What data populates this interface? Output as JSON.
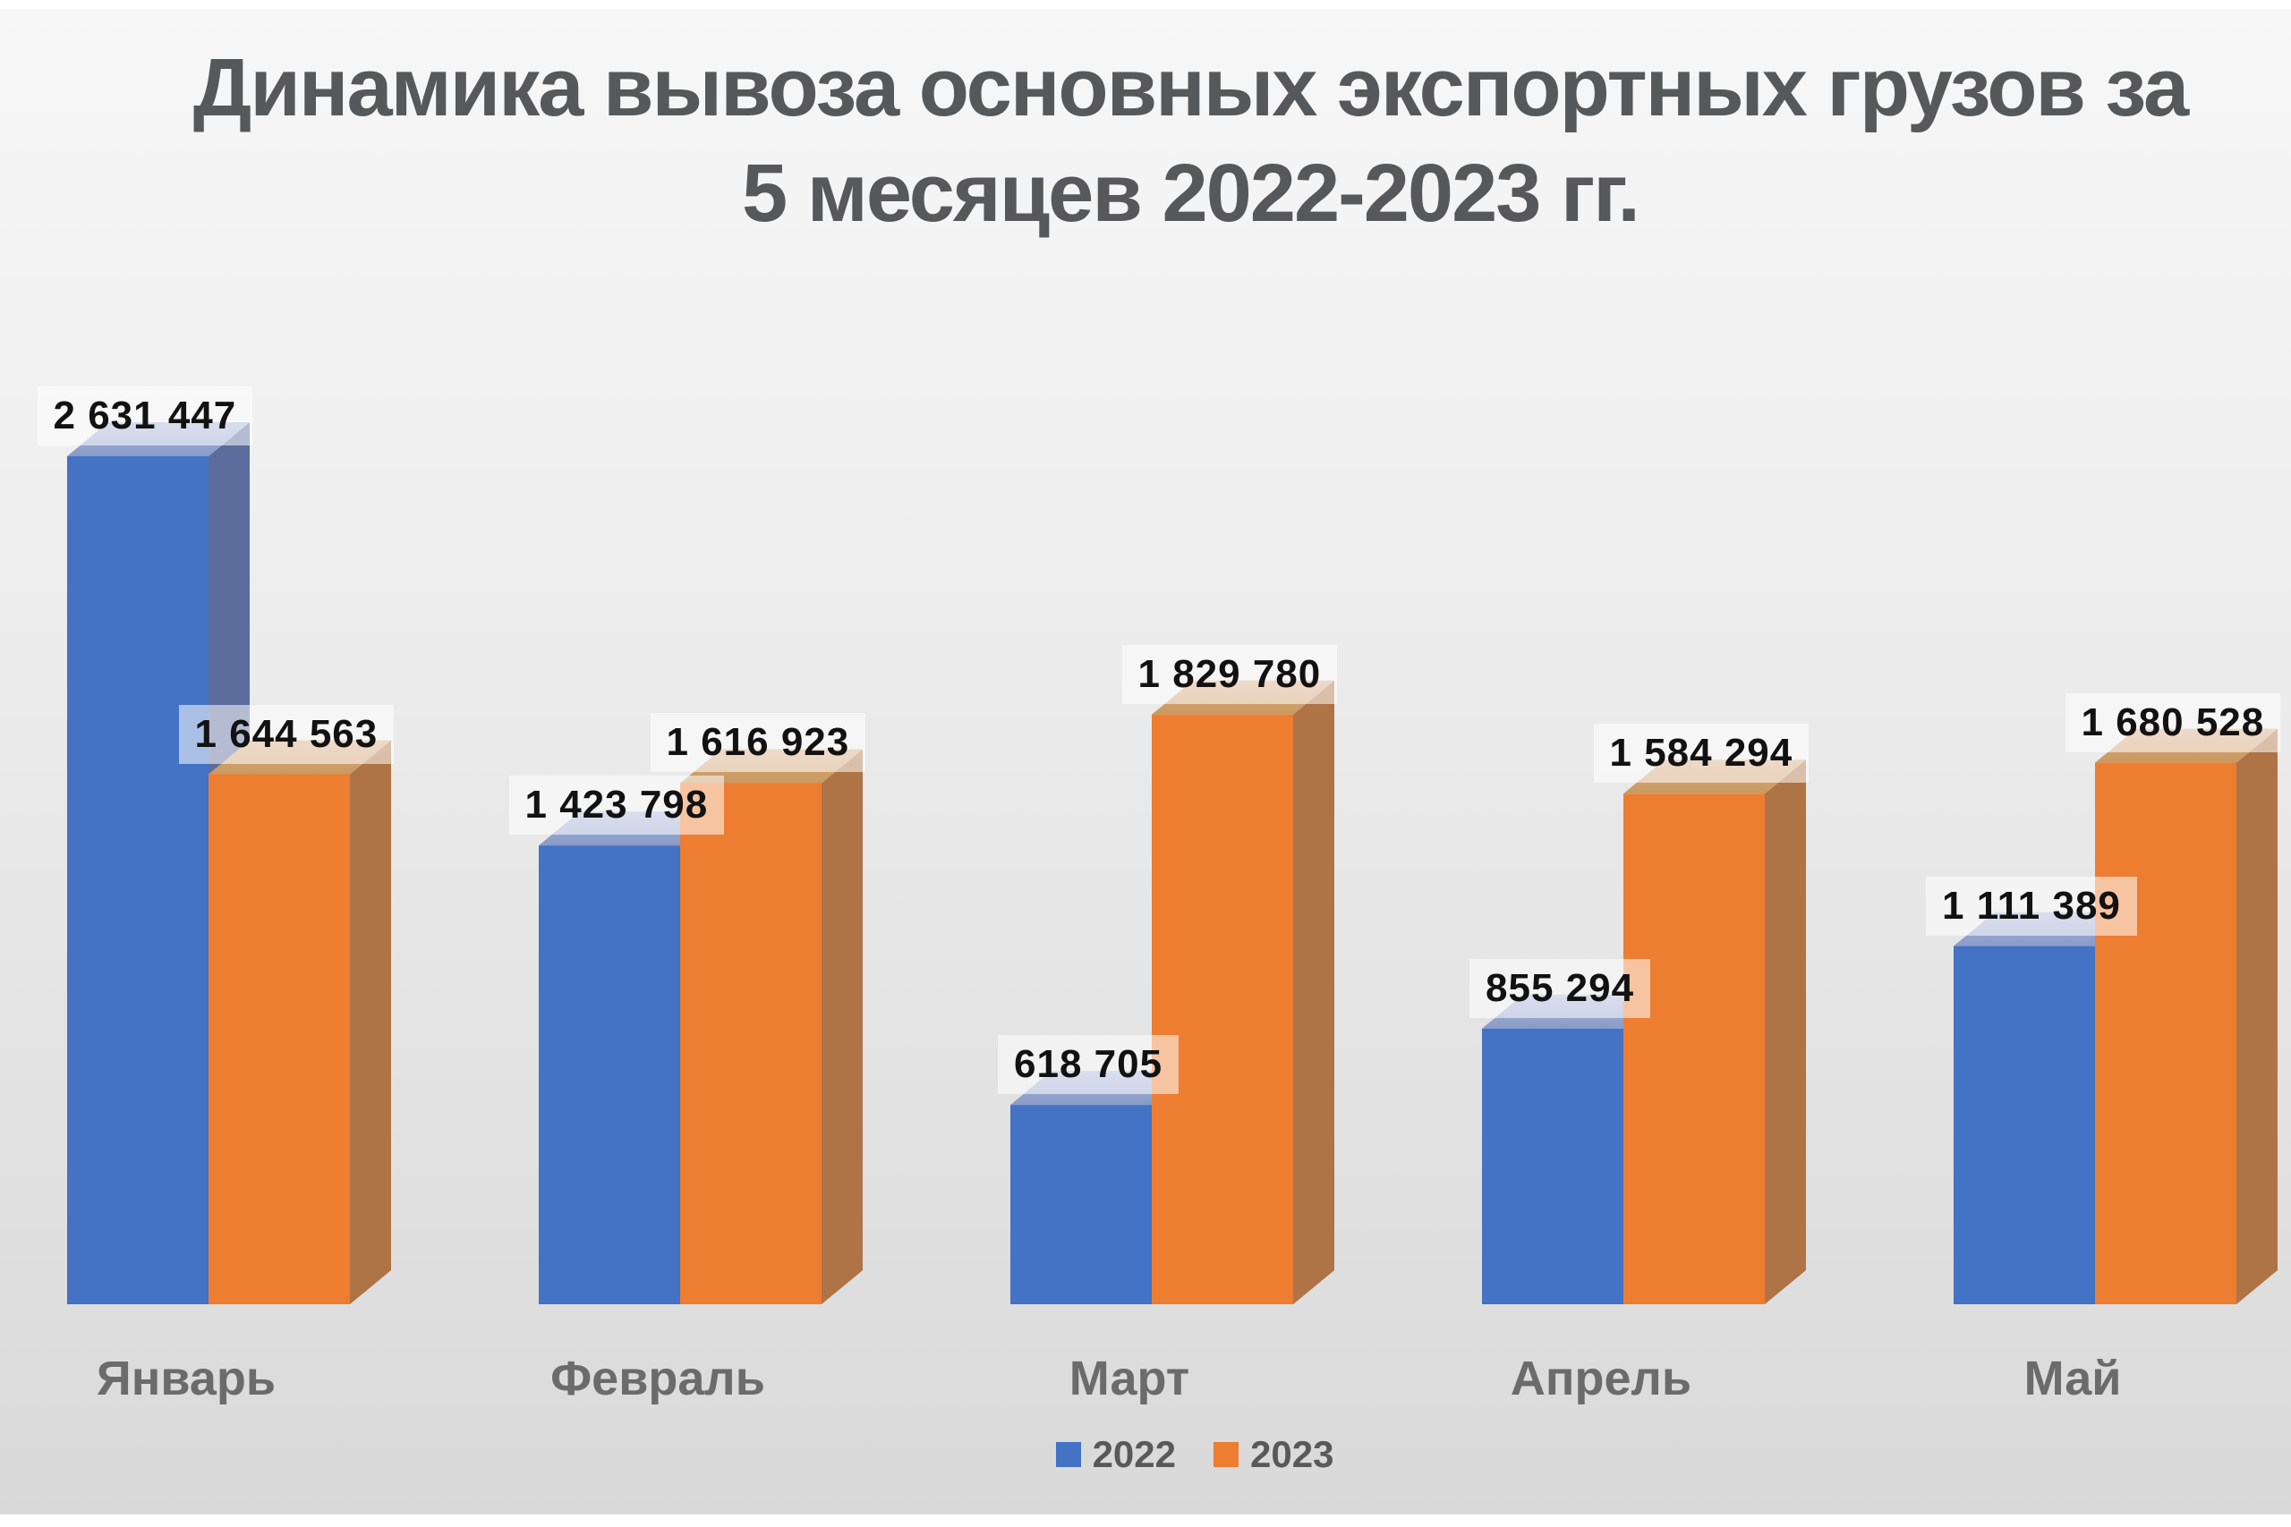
{
  "title": {
    "line1": "Динамика вывоза основных экспортных грузов за",
    "line2": "5 месяцев 2022-2023 гг.",
    "color": "#57585a"
  },
  "chart_data": {
    "type": "bar",
    "subtype": "3d-column",
    "title": "Динамика вывоза основных экспортных грузов за 5 месяцев 2022-2023 гг.",
    "categories": [
      "Январь",
      "Февраль",
      "Март",
      "Апрель",
      "Май"
    ],
    "series": [
      {
        "name": "2022",
        "front_color": "#4472C4",
        "top_color_front": "#8a9bc8",
        "top_color_back": "#a9b6d8",
        "side_color": "#5b6c9c",
        "values": [
          2631447,
          1423798,
          618705,
          855294,
          1111389
        ]
      },
      {
        "name": "2023",
        "front_color": "#ED7D31",
        "top_color_front": "#c9995f",
        "top_color_back": "#d9ab85",
        "side_color": "#ae7445",
        "values": [
          1644563,
          1616923,
          1829780,
          1584294,
          1680528
        ]
      }
    ],
    "value_labels": [
      [
        "2 631 447",
        "1 423 798",
        "618 705",
        "855 294",
        "1 111 389"
      ],
      [
        "1 644 563",
        "1 616 923",
        "1 829 780",
        "1 584 294",
        "1 680 528"
      ]
    ],
    "xlabel": "",
    "ylabel": "",
    "ylim": [
      0,
      2800000
    ],
    "gridlines": false,
    "y_axis_visible": false,
    "legend_position": "bottom",
    "legend_entries": [
      "2022",
      "2023"
    ],
    "label_number_format": "space-grouped",
    "background_gradient": [
      "#f7f7f7",
      "#d9d9d9"
    ]
  }
}
